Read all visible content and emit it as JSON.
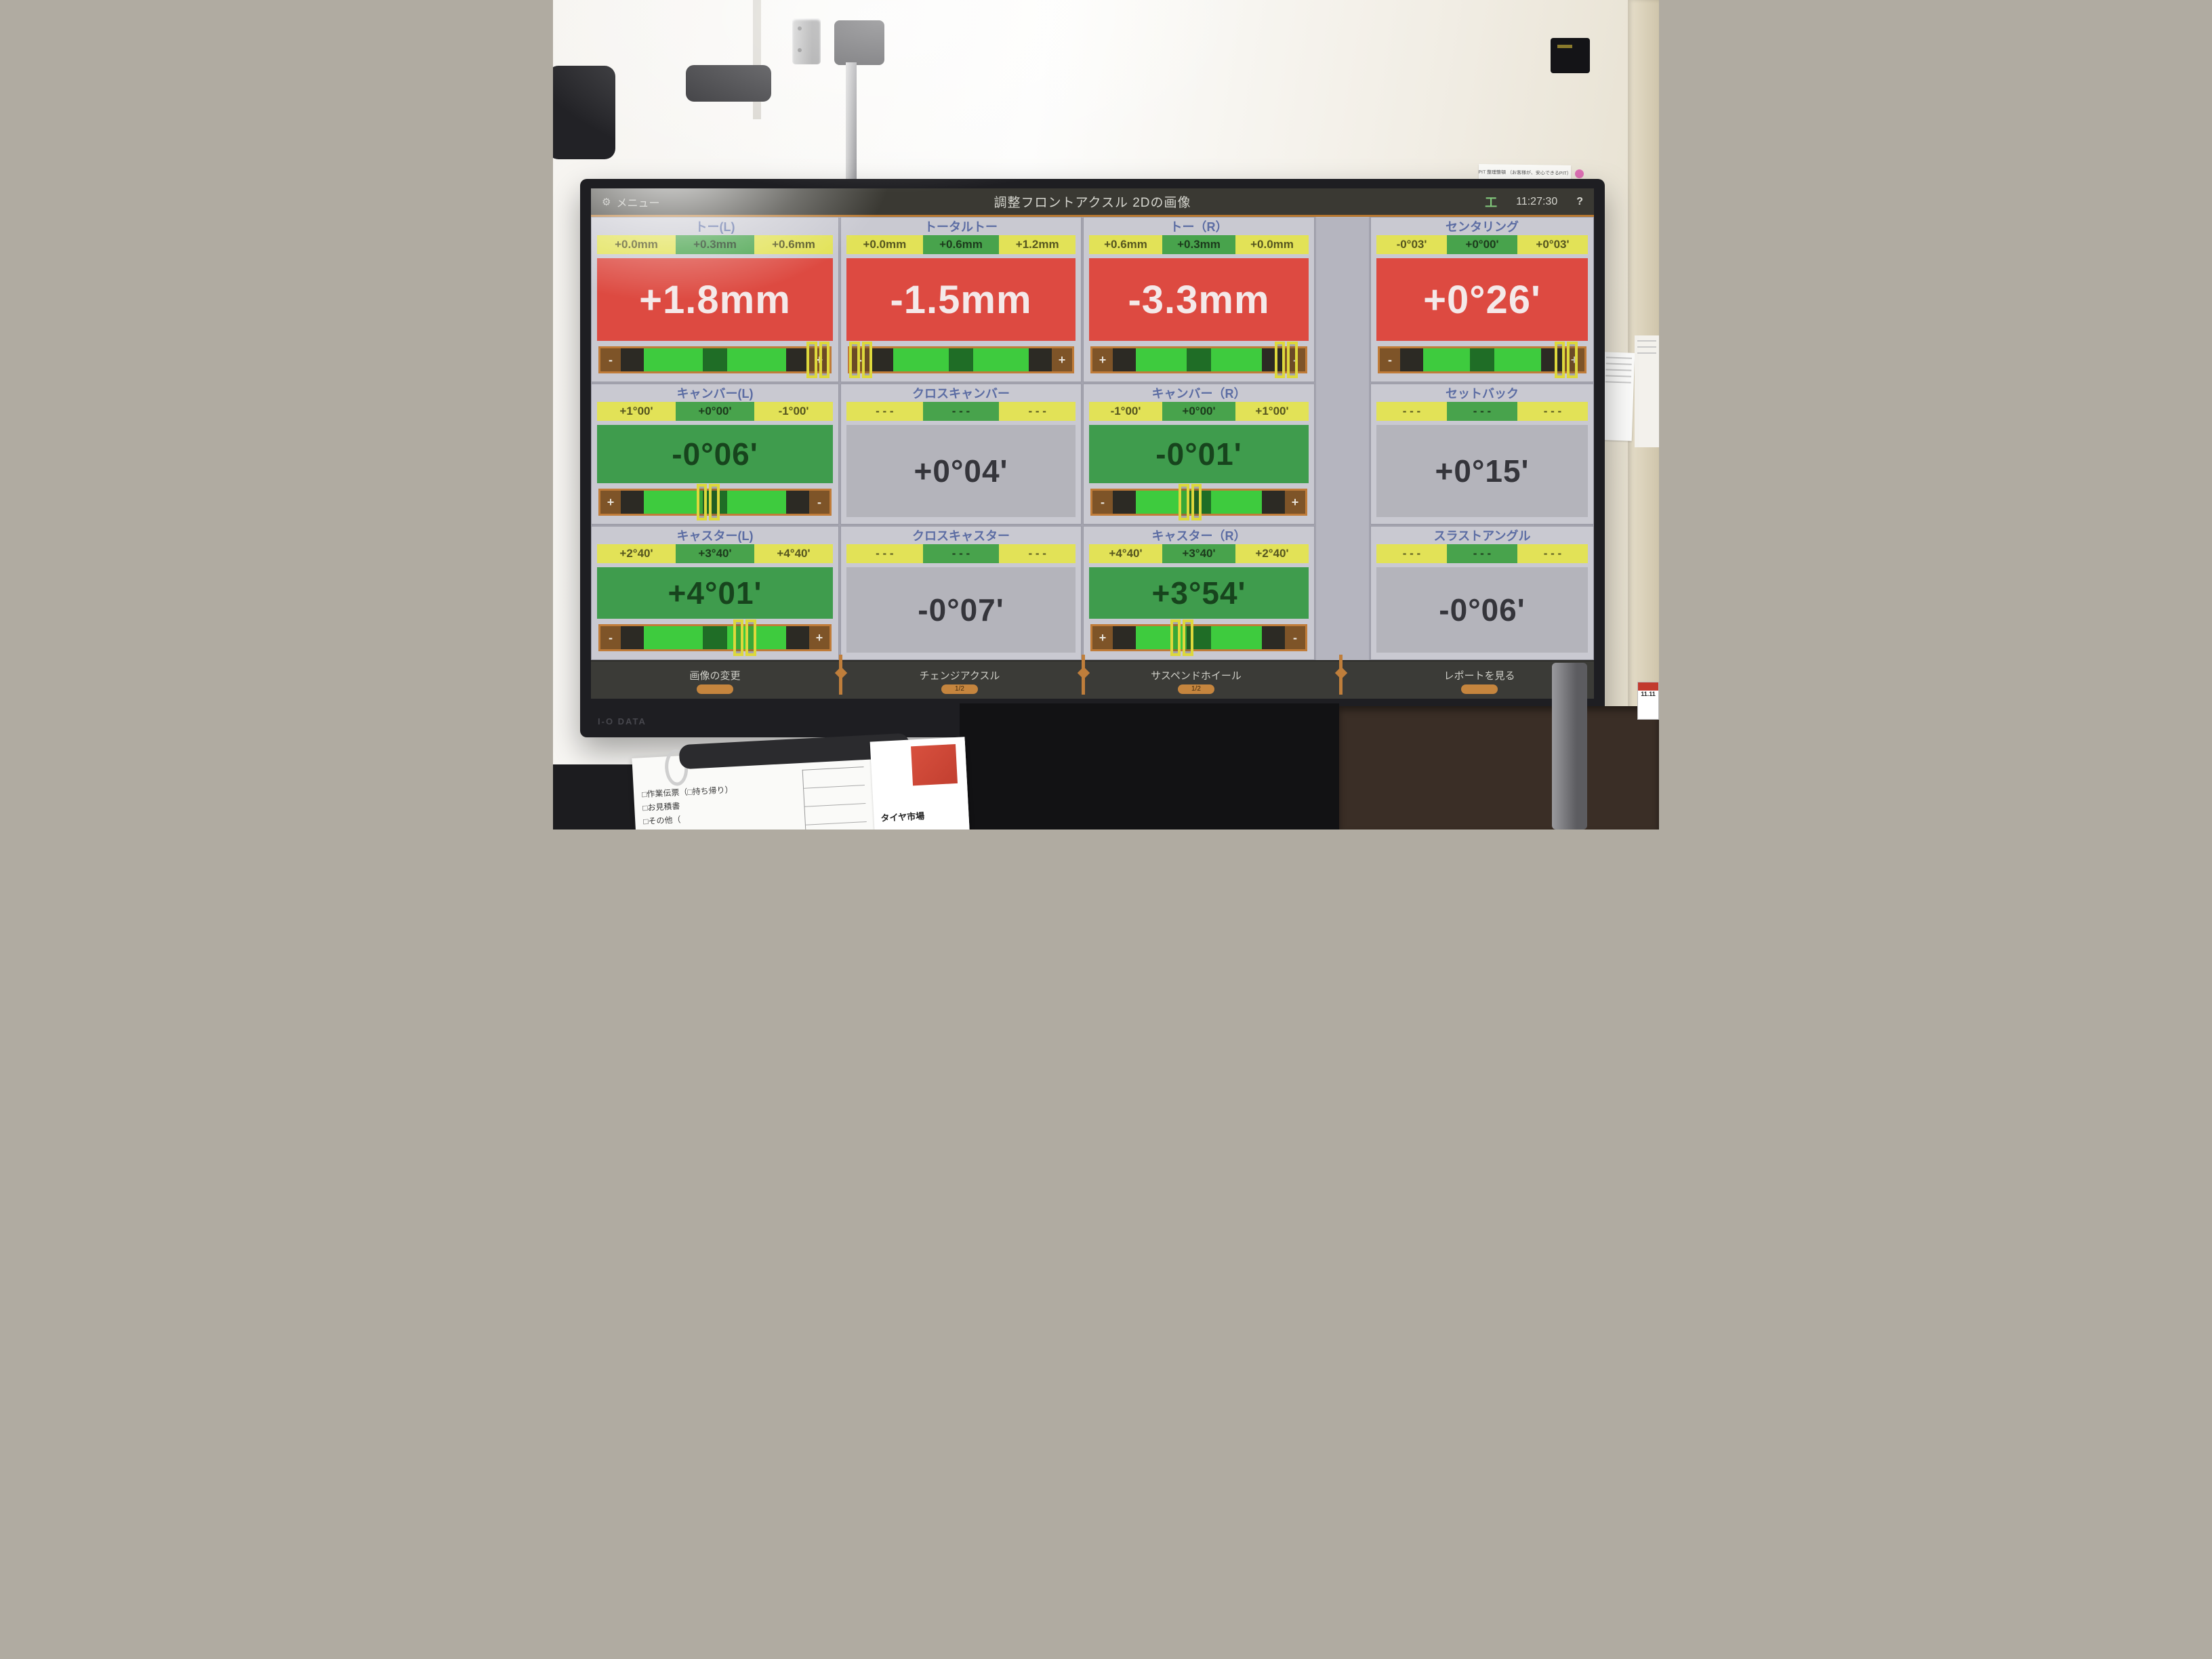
{
  "colors": {
    "status_red": "#dd4a41",
    "status_green": "#3f9c4d",
    "status_gray": "#b4b4bb",
    "spec_yellow": "#e2e257",
    "spec_green": "#48a34c",
    "slider_orange": "#c07c39",
    "slider_green": "#3ecb3e",
    "cursor_yellow": "#ddd83c",
    "title_blue": "#5b6ca3"
  },
  "screen": {
    "topbar": {
      "menu_label": "メニュー",
      "title": "調整フロントアクスル 2Dの画像",
      "time": "11:27:30",
      "help": "?",
      "axle_icon_glyph": "工"
    },
    "panels": [
      {
        "id": "toe-left",
        "title": "トー(L)",
        "specs": [
          "+0.0mm",
          "+0.3mm",
          "+0.6mm"
        ],
        "value": "+1.8mm",
        "status": "red",
        "slider": {
          "left_sign": "-",
          "right_sign": "+",
          "cursor": 0.95
        }
      },
      {
        "id": "total-toe",
        "title": "トータルトー",
        "specs": [
          "+0.0mm",
          "+0.6mm",
          "+1.2mm"
        ],
        "value": "-1.5mm",
        "status": "red",
        "slider": {
          "left_sign": "-",
          "right_sign": "+",
          "cursor": 0.05
        }
      },
      {
        "id": "toe-right",
        "title": "トー（R）",
        "specs": [
          "+0.6mm",
          "+0.3mm",
          "+0.0mm"
        ],
        "value": "-3.3mm",
        "status": "red",
        "slider": {
          "left_sign": "+",
          "right_sign": "-",
          "cursor": 0.91
        }
      },
      {
        "id": "centering",
        "title": "センタリング",
        "specs": [
          "-0°03'",
          "+0°00'",
          "+0°03'"
        ],
        "value": "+0°26'",
        "status": "red",
        "slider": {
          "left_sign": "-",
          "right_sign": "+",
          "cursor": 0.91
        }
      },
      {
        "id": "camber-left",
        "title": "キャンバー(L)",
        "specs": [
          "+1°00'",
          "+0°00'",
          "-1°00'"
        ],
        "value": "-0°06'",
        "status": "green",
        "slider": {
          "left_sign": "+",
          "right_sign": "-",
          "cursor": 0.47
        }
      },
      {
        "id": "cross-camber",
        "title": "クロスキャンバー",
        "specs": [
          "- - -",
          "- - -",
          "- - -"
        ],
        "value": "+0°04'",
        "status": "gray",
        "slider": null
      },
      {
        "id": "camber-right",
        "title": "キャンバー（R）",
        "specs": [
          "-1°00'",
          "+0°00'",
          "+1°00'"
        ],
        "value": "-0°01'",
        "status": "green",
        "slider": {
          "left_sign": "-",
          "right_sign": "+",
          "cursor": 0.46
        }
      },
      {
        "id": "setback",
        "title": "セットバック",
        "specs": [
          "- - -",
          "- - -",
          "- - -"
        ],
        "value": "+0°15'",
        "status": "gray",
        "slider": null
      },
      {
        "id": "caster-left",
        "title": "キャスター(L)",
        "specs": [
          "+2°40'",
          "+3°40'",
          "+4°40'"
        ],
        "value": "+4°01'",
        "status": "green",
        "slider": {
          "left_sign": "-",
          "right_sign": "+",
          "cursor": 0.63
        }
      },
      {
        "id": "cross-caster",
        "title": "クロスキャスター",
        "specs": [
          "- - -",
          "- - -",
          "- - -"
        ],
        "value": "-0°07'",
        "status": "gray",
        "slider": null
      },
      {
        "id": "caster-right",
        "title": "キャスター（R）",
        "specs": [
          "+4°40'",
          "+3°40'",
          "+2°40'"
        ],
        "value": "+3°54'",
        "status": "green",
        "slider": {
          "left_sign": "+",
          "right_sign": "-",
          "cursor": 0.42
        }
      },
      {
        "id": "thrust-angle",
        "title": "スラストアングル",
        "specs": [
          "- - -",
          "- - -",
          "- - -"
        ],
        "value": "-0°06'",
        "status": "gray",
        "slider": null
      }
    ],
    "bottombar": {
      "buttons": [
        {
          "id": "change-image",
          "label": "画像の変更",
          "badge": ""
        },
        {
          "id": "change-axle",
          "label": "チェンジアクスル",
          "badge": "1/2"
        },
        {
          "id": "suspend-wheel",
          "label": "サスペンドホイール",
          "badge": "1/2"
        },
        {
          "id": "view-report",
          "label": "レポートを見る",
          "badge": ""
        }
      ]
    }
  },
  "environment": {
    "monitor_brand": "I-O DATA",
    "wall_label": "PIT 整理整頓 （お客様が、安心できるPIT）",
    "calendar_label": "11.11",
    "clipboard": {
      "line1": "□作業伝票（□持ち帰り）",
      "line2": "□お見積書",
      "line3": "□その他（",
      "flyer_title": "タイヤ市場"
    }
  }
}
